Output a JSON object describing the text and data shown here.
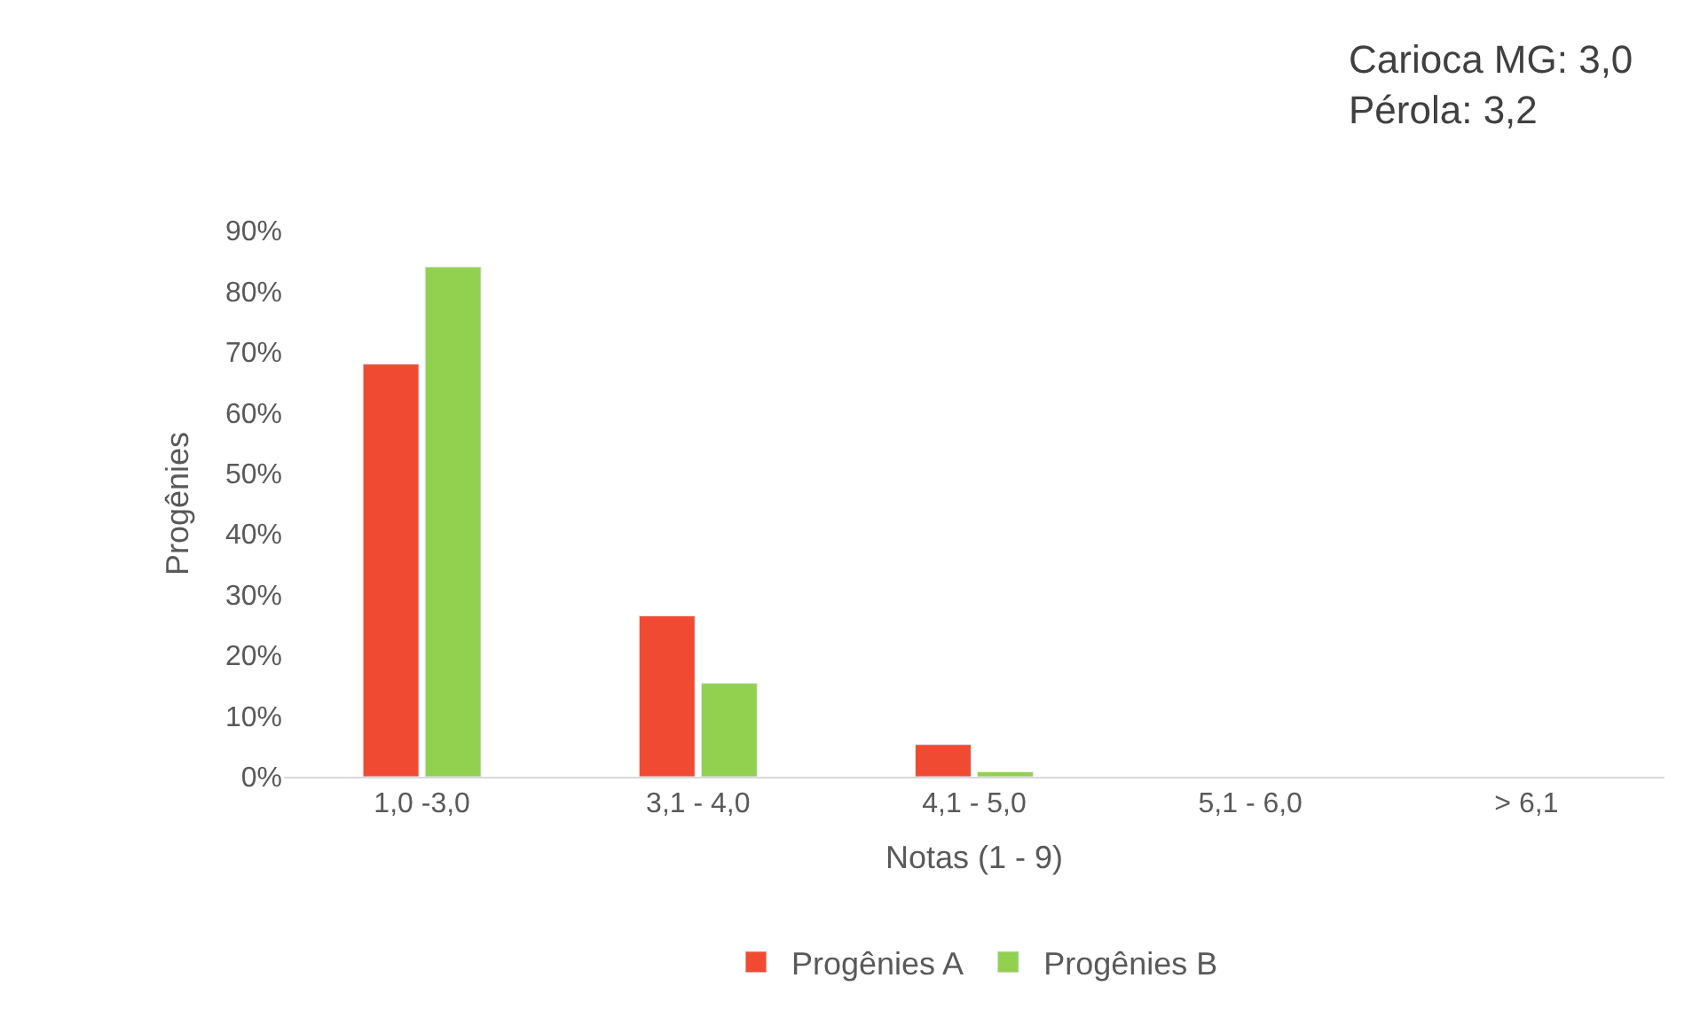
{
  "chart_data": {
    "type": "bar",
    "xlabel": "Notas (1 - 9)",
    "ylabel": "Progênies",
    "categories": [
      "1,0 -3,0",
      "3,1 - 4,0",
      "4,1 - 5,0",
      "5,1 - 6,0",
      "> 6,1"
    ],
    "series": [
      {
        "name": "Progênies A",
        "color": "#f04b32",
        "values": [
          68,
          26.5,
          5.3,
          null,
          null
        ]
      },
      {
        "name": "Progênies B",
        "color": "#92d050",
        "values": [
          84,
          15.4,
          0.8,
          null,
          null
        ]
      }
    ],
    "ylim": [
      0,
      90
    ],
    "yticks": [
      {
        "value": 0,
        "label": "0%"
      },
      {
        "value": 10,
        "label": "10%"
      },
      {
        "value": 20,
        "label": "20%"
      },
      {
        "value": 30,
        "label": "30%"
      },
      {
        "value": 40,
        "label": "40%"
      },
      {
        "value": 50,
        "label": "50%"
      },
      {
        "value": 60,
        "label": "60%"
      },
      {
        "value": 70,
        "label": "70%"
      },
      {
        "value": 80,
        "label": "80%"
      },
      {
        "value": 90,
        "label": "90%"
      }
    ],
    "annotations": [
      "Carioca MG: 3,0\nPérola: 3,2"
    ],
    "grid": false,
    "legend": "bottom"
  }
}
